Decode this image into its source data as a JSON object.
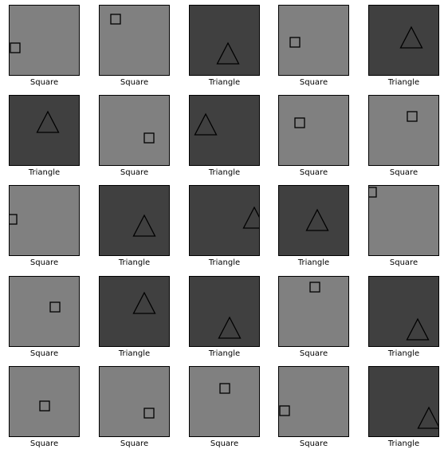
{
  "colors": {
    "square_bg": "#808080",
    "triangle_bg": "#404040",
    "shape_stroke": "#000000",
    "border": "#000000",
    "page_bg": "#ffffff"
  },
  "tiles": [
    {
      "label": "Square"
    },
    {
      "label": "Square"
    },
    {
      "label": "Triangle"
    },
    {
      "label": "Square"
    },
    {
      "label": "Triangle"
    },
    {
      "label": "Triangle"
    },
    {
      "label": "Square"
    },
    {
      "label": "Triangle"
    },
    {
      "label": "Square"
    },
    {
      "label": "Square"
    },
    {
      "label": "Square"
    },
    {
      "label": "Triangle"
    },
    {
      "label": "Triangle"
    },
    {
      "label": "Triangle"
    },
    {
      "label": "Square"
    },
    {
      "label": "Square"
    },
    {
      "label": "Triangle"
    },
    {
      "label": "Triangle"
    },
    {
      "label": "Square"
    },
    {
      "label": "Triangle"
    },
    {
      "label": "Square"
    },
    {
      "label": "Square"
    },
    {
      "label": "Square"
    },
    {
      "label": "Square"
    },
    {
      "label": "Triangle"
    }
  ]
}
